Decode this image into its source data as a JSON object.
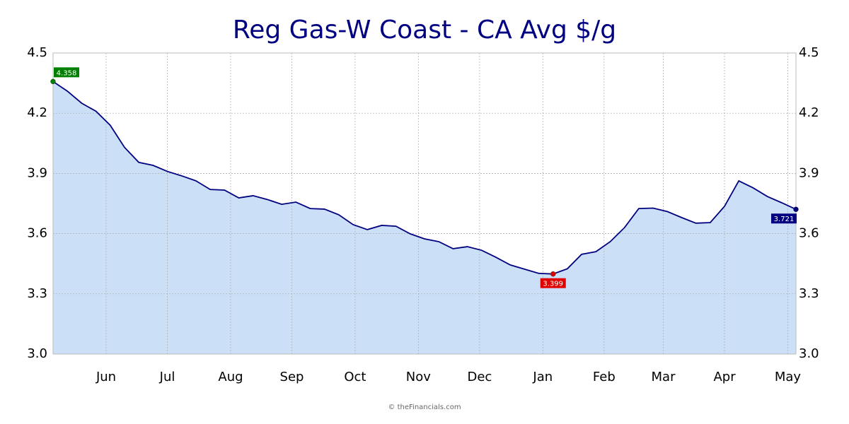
{
  "chart_data": {
    "type": "area",
    "title": "Reg Gas-W Coast - CA Avg $/g",
    "x": [
      0,
      7,
      14,
      21,
      28,
      35,
      42,
      49,
      56,
      63,
      70,
      77,
      84,
      91,
      98,
      105,
      112,
      119,
      126,
      133,
      140,
      147,
      154,
      161,
      168,
      175,
      182,
      189,
      196,
      203,
      210,
      217,
      224,
      231,
      238,
      245,
      252,
      259,
      266,
      273,
      280,
      287,
      294,
      301,
      308,
      315,
      322,
      329,
      336,
      343,
      350,
      357,
      364
    ],
    "values": [
      4.358,
      4.31,
      4.25,
      4.21,
      4.14,
      4.03,
      3.955,
      3.94,
      3.91,
      3.888,
      3.863,
      3.82,
      3.817,
      3.778,
      3.789,
      3.77,
      3.746,
      3.757,
      3.725,
      3.722,
      3.694,
      3.645,
      3.62,
      3.641,
      3.637,
      3.599,
      3.574,
      3.56,
      3.525,
      3.535,
      3.517,
      3.482,
      3.444,
      3.423,
      3.402,
      3.399,
      3.425,
      3.497,
      3.51,
      3.56,
      3.63,
      3.725,
      3.727,
      3.71,
      3.68,
      3.652,
      3.655,
      3.736,
      3.863,
      3.828,
      3.785,
      3.754,
      3.721
    ],
    "color": "#000080",
    "fill": "#cbe0f7",
    "marker_labels": [
      {
        "index": 0,
        "color": "#008000"
      },
      {
        "index": 35,
        "color": "#e00000"
      },
      {
        "index": 52,
        "color": "#000080"
      }
    ],
    "xlim": [
      0,
      364
    ],
    "xticks": [
      {
        "value": 26,
        "label": "Jun"
      },
      {
        "value": 56,
        "label": "Jul"
      },
      {
        "value": 87,
        "label": "Aug"
      },
      {
        "value": 117,
        "label": "Sep"
      },
      {
        "value": 148,
        "label": "Oct"
      },
      {
        "value": 179,
        "label": "Nov"
      },
      {
        "value": 209,
        "label": "Dec"
      },
      {
        "value": 240,
        "label": "Jan"
      },
      {
        "value": 270,
        "label": "Feb"
      },
      {
        "value": 299,
        "label": "Mar"
      },
      {
        "value": 329,
        "label": "Apr"
      },
      {
        "value": 360,
        "label": "May"
      }
    ],
    "ylim": [
      3.0,
      4.5
    ],
    "yticks": [
      {
        "value": 3.0,
        "label": "3.0"
      },
      3.3,
      3.6,
      3.9,
      4.2,
      4.5
    ],
    "grid": true,
    "footer": "© theFinancials.com"
  }
}
